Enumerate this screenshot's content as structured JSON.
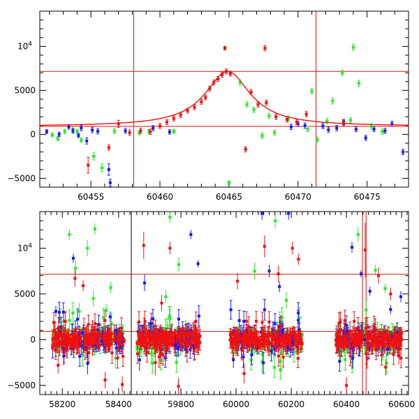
{
  "colors": {
    "green": "#22ee22",
    "blue": "#1a1aee",
    "red": "#ee1111",
    "axis": "#000000",
    "ref": "#dd1111"
  },
  "chart_data": [
    {
      "type": "scatter",
      "title": "",
      "xlabel": "",
      "ylabel": "",
      "xlim": [
        60451.3,
        60478.0
      ],
      "ylim": [
        -6000,
        14000
      ],
      "xticks": [
        {
          "v": 60455,
          "label": "60455"
        },
        {
          "v": 60460,
          "label": "60460"
        },
        {
          "v": 60465,
          "label": "60465"
        },
        {
          "v": 60470,
          "label": "60470"
        },
        {
          "v": 60475,
          "label": "60475"
        }
      ],
      "yticks": [
        {
          "v": -5000,
          "label": "−5000"
        },
        {
          "v": 0,
          "label": "0"
        },
        {
          "v": 5000,
          "label": "5000"
        },
        {
          "v": 10000,
          "label": "10⁴",
          "base": "10",
          "exp": "4"
        }
      ],
      "reference_lines": {
        "horizontal": [
          900,
          7150
        ],
        "vertical": [
          60458.1,
          60471.3
        ]
      },
      "model_curve": {
        "peak_x": 60464.9,
        "peak_y": 7150,
        "baseline": 900,
        "width_days": 2.0
      },
      "series": [
        {
          "color_key": "green",
          "points": [
            [
              60452.2,
              -50,
              230
            ],
            [
              60452.6,
              -480,
              230
            ],
            [
              60453.1,
              320,
              260
            ],
            [
              60453.7,
              600,
              260
            ],
            [
              60454.0,
              330,
              230
            ],
            [
              60454.3,
              -650,
              270
            ],
            [
              60455.2,
              -2500,
              400
            ],
            [
              60455.8,
              -3800,
              450
            ],
            [
              60456.7,
              370,
              300
            ],
            [
              60458.5,
              180,
              230
            ],
            [
              60459.2,
              320,
              230
            ],
            [
              60461.0,
              350,
              230
            ],
            [
              60465.0,
              -5500,
              200
            ],
            [
              60465.8,
              5900,
              300
            ],
            [
              60466.3,
              3400,
              300
            ],
            [
              60466.8,
              2800,
              300
            ],
            [
              60467.4,
              -150,
              300
            ],
            [
              60467.9,
              2100,
              300
            ],
            [
              60468.3,
              200,
              300
            ],
            [
              60469.3,
              1800,
              300
            ],
            [
              60470.7,
              600,
              300
            ],
            [
              60471.0,
              4900,
              300
            ],
            [
              60471.4,
              -600,
              300
            ],
            [
              60472.1,
              1500,
              300
            ],
            [
              60472.5,
              3800,
              350
            ],
            [
              60473.2,
              7000,
              300
            ],
            [
              60473.8,
              1600,
              300
            ],
            [
              60474.0,
              9900,
              350
            ],
            [
              60474.4,
              5800,
              350
            ],
            [
              60475.3,
              900,
              300
            ],
            [
              60476.1,
              300,
              300
            ]
          ]
        },
        {
          "color_key": "blue",
          "points": [
            [
              60451.8,
              320,
              220
            ],
            [
              60452.7,
              0,
              250
            ],
            [
              60453.4,
              850,
              270
            ],
            [
              60453.7,
              380,
              250
            ],
            [
              60454.1,
              -120,
              250
            ],
            [
              60454.3,
              720,
              300
            ],
            [
              60454.7,
              -750,
              350
            ],
            [
              60455.1,
              500,
              300
            ],
            [
              60455.5,
              350,
              300
            ],
            [
              60456.3,
              -4000,
              650
            ],
            [
              60456.4,
              -5500,
              400
            ],
            [
              60457.5,
              400,
              280
            ],
            [
              60459.5,
              700,
              300
            ],
            [
              60460.7,
              280,
              250
            ],
            [
              60469.5,
              850,
              300
            ],
            [
              60470.0,
              1200,
              300
            ],
            [
              60470.5,
              1000,
              300
            ],
            [
              60471.8,
              950,
              300
            ],
            [
              60472.2,
              520,
              300
            ],
            [
              60472.8,
              700,
              300
            ],
            [
              60473.3,
              1400,
              300
            ],
            [
              60474.2,
              580,
              280
            ],
            [
              60474.9,
              -400,
              280
            ],
            [
              60475.5,
              600,
              280
            ],
            [
              60476.3,
              400,
              280
            ],
            [
              60476.8,
              1200,
              300
            ],
            [
              60477.6,
              -2000,
              300
            ]
          ]
        },
        {
          "color_key": "red",
          "points": [
            [
              60454.8,
              -3500,
              900
            ],
            [
              60456.3,
              -1500,
              300
            ],
            [
              60457.0,
              1200,
              400
            ],
            [
              60457.8,
              200,
              300
            ],
            [
              60458.6,
              400,
              300
            ],
            [
              60459.3,
              300,
              300
            ],
            [
              60460.0,
              950,
              280
            ],
            [
              60460.5,
              1400,
              280
            ],
            [
              60461.0,
              1800,
              280
            ],
            [
              60461.5,
              2200,
              280
            ],
            [
              60462.0,
              2700,
              280
            ],
            [
              60462.5,
              3100,
              280
            ],
            [
              60463.0,
              3700,
              280
            ],
            [
              60463.3,
              4200,
              280
            ],
            [
              60463.6,
              5200,
              280
            ],
            [
              60463.9,
              5900,
              280
            ],
            [
              60464.2,
              6300,
              280
            ],
            [
              60464.5,
              6800,
              280
            ],
            [
              60464.8,
              7150,
              280
            ],
            [
              60465.1,
              6900,
              280
            ],
            [
              60464.7,
              9800,
              200
            ],
            [
              60466.2,
              -1700,
              300
            ],
            [
              60466.6,
              4800,
              300
            ],
            [
              60467.1,
              3400,
              300
            ],
            [
              60467.6,
              9800,
              300
            ],
            [
              60467.7,
              3600,
              300
            ],
            [
              60468.4,
              2000,
              300
            ],
            [
              60469.2,
              1700,
              300
            ],
            [
              60469.9,
              1400,
              300
            ],
            [
              60470.6,
              2300,
              300
            ],
            [
              60473.3,
              1300,
              300
            ]
          ]
        }
      ]
    },
    {
      "type": "scatter",
      "title": "",
      "xlabel": "",
      "ylabel": "",
      "ylim": [
        -6000,
        14000
      ],
      "broken_x_axis": true,
      "segments": [
        {
          "xlim": [
            58120,
            58445
          ],
          "xticks": [
            {
              "v": 58200,
              "label": "58200"
            },
            {
              "v": 58400,
              "label": "58400"
            }
          ]
        },
        {
          "xlim": [
            59620,
            60625
          ],
          "xticks": [
            {
              "v": 59800,
              "label": "59800"
            },
            {
              "v": 60000,
              "label": "60000"
            },
            {
              "v": 60200,
              "label": "60200"
            },
            {
              "v": 60400,
              "label": "60400"
            },
            {
              "v": 60600,
              "label": "60600"
            }
          ]
        }
      ],
      "yticks": [
        {
          "v": -5000,
          "label": "−5000"
        },
        {
          "v": 0,
          "label": "0"
        },
        {
          "v": 5000,
          "label": "5000"
        },
        {
          "v": 10000,
          "label": "10⁴",
          "base": "10",
          "exp": "4"
        }
      ],
      "reference_lines": {
        "horizontal": [
          900,
          7150
        ],
        "vertical": [
          60458.1,
          60471.3
        ]
      },
      "observing_seasons": [
        {
          "segment": 0,
          "range": [
            58165,
            58420
          ]
        },
        {
          "segment": 1,
          "range": [
            59640,
            59870
          ]
        },
        {
          "segment": 1,
          "range": [
            59975,
            60240
          ]
        },
        {
          "segment": 1,
          "range": [
            60360,
            60600
          ]
        }
      ],
      "series": [
        {
          "color_key": "green",
          "points": [
            [
              58225,
              11500,
              600
            ],
            [
              58247,
              7800,
              800
            ],
            [
              58260,
              3100,
              900
            ],
            [
              58289,
              10000,
              900
            ],
            [
              58310,
              4500,
              900
            ],
            [
              58316,
              12100,
              600
            ],
            [
              58356,
              3200,
              700
            ],
            [
              58372,
              5700,
              600
            ],
            [
              59731,
              14100,
              500
            ],
            [
              59745,
              4700,
              700
            ],
            [
              59760,
              13400,
              600
            ],
            [
              59792,
              8200,
              800
            ],
            [
              60067,
              7500,
              900
            ],
            [
              60142,
              13000,
              800
            ],
            [
              60182,
              4300,
              900
            ],
            [
              60442,
              11500,
              800
            ],
            [
              60505,
              7600,
              600
            ],
            [
              60540,
              5600,
              500
            ]
          ]
        },
        {
          "color_key": "blue",
          "points": [
            [
              58177,
              3100,
              600
            ],
            [
              58205,
              -1800,
              1000
            ],
            [
              58239,
              8900,
              500
            ],
            [
              58290,
              -2600,
              1200
            ],
            [
              58370,
              2500,
              600
            ],
            [
              58392,
              -900,
              800
            ],
            [
              59650,
              -2200,
              1200
            ],
            [
              59668,
              6200,
              900
            ],
            [
              59690,
              1700,
              600
            ],
            [
              59780,
              -600,
              1100
            ],
            [
              59836,
              11500,
              500
            ],
            [
              59862,
              8300,
              400
            ],
            [
              59990,
              -2200,
              900
            ],
            [
              60094,
              13800,
              700
            ],
            [
              60120,
              7500,
              700
            ],
            [
              60157,
              5800,
              600
            ],
            [
              60190,
              13800,
              700
            ],
            [
              60205,
              -300,
              800
            ],
            [
              60420,
              10100,
              600
            ],
            [
              60453,
              7200,
              400
            ],
            [
              60485,
              5300,
              500
            ],
            [
              60560,
              3300,
              500
            ],
            [
              60597,
              4700,
              600
            ]
          ]
        },
        {
          "color_key": "red",
          "points": [
            [
              58185,
              -2800,
              900
            ],
            [
              58245,
              6700,
              900
            ],
            [
              58274,
              5900,
              600
            ],
            [
              58307,
              -700,
              1100
            ],
            [
              58352,
              -4400,
              900
            ],
            [
              58413,
              -4900,
              900
            ],
            [
              59665,
              10300,
              1500
            ],
            [
              59707,
              -2500,
              1400
            ],
            [
              59730,
              4000,
              900
            ],
            [
              59760,
              10000,
              700
            ],
            [
              59791,
              -5100,
              900
            ],
            [
              60005,
              6400,
              900
            ],
            [
              60029,
              -3700,
              1100
            ],
            [
              60103,
              10200,
              1200
            ],
            [
              60153,
              7200,
              900
            ],
            [
              60204,
              10000,
              700
            ],
            [
              60226,
              8800,
              600
            ],
            [
              60400,
              -5000,
              900
            ],
            [
              60468,
              9800,
              3000
            ],
            [
              60516,
              7000,
              900
            ],
            [
              60542,
              -3000,
              900
            ],
            [
              60560,
              5000,
              700
            ],
            [
              60590,
              -1800,
              900
            ]
          ]
        }
      ]
    }
  ]
}
